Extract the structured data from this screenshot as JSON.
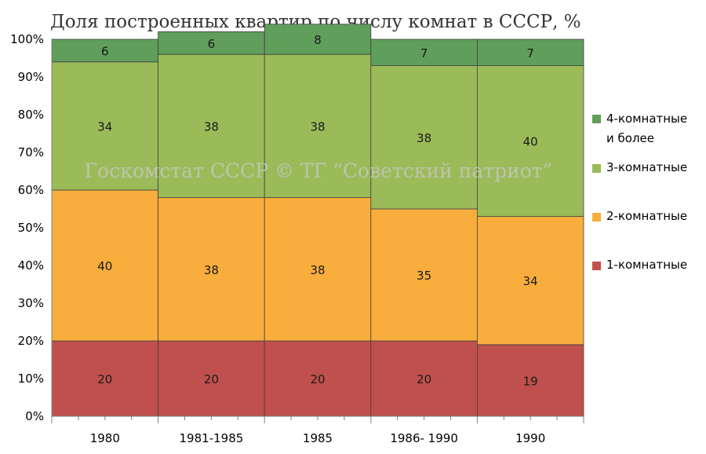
{
  "chart_data": {
    "type": "bar",
    "stacked": true,
    "title": "Доля построенных квартир по числу комнат в СССР, %",
    "categories": [
      "1980",
      "1981-1985",
      "1985",
      "1986- 1990",
      "1990"
    ],
    "series": [
      {
        "name": "1-комнатные",
        "color": "#c0504d",
        "values": [
          20,
          20,
          20,
          20,
          19
        ]
      },
      {
        "name": "2-комнатные",
        "color": "#f8ad3c",
        "values": [
          40,
          38,
          38,
          35,
          34
        ]
      },
      {
        "name": "3-комнатные",
        "color": "#9bbb59",
        "values": [
          34,
          38,
          38,
          38,
          40
        ]
      },
      {
        "name": "4-комнатные",
        "name_line2": "и более",
        "color": "#5f9e5b",
        "values": [
          6,
          6,
          8,
          7,
          7
        ]
      }
    ],
    "ylim": [
      0,
      100
    ],
    "yticks": [
      "0%",
      "10%",
      "20%",
      "30%",
      "40%",
      "50%",
      "60%",
      "70%",
      "80%",
      "90%",
      "100%"
    ],
    "grid": true,
    "legend": "right",
    "watermark": "Госкомстат СССР © ТГ “Советский патриот”"
  }
}
